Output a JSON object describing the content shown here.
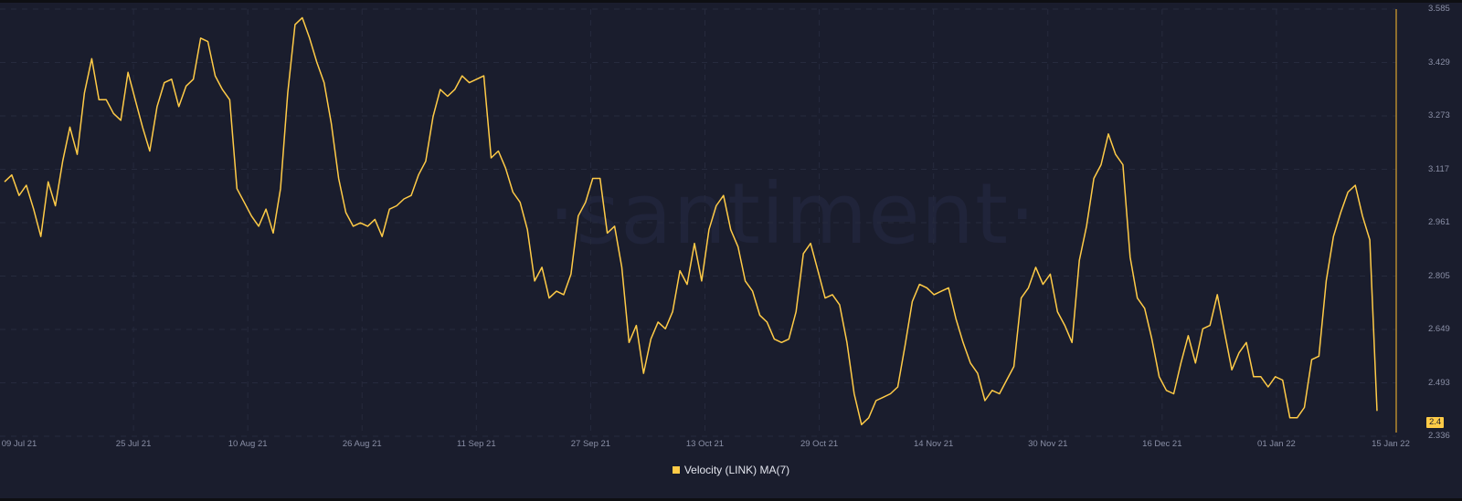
{
  "chart_data": {
    "type": "line",
    "title": "",
    "watermark": "·santiment·",
    "legend": [
      {
        "name": "Velocity (LINK) MA(7)",
        "color": "#ffcb47"
      }
    ],
    "y_ticks": [
      "3.585",
      "3.429",
      "3.273",
      "3.117",
      "2.961",
      "2.805",
      "2.649",
      "2.493",
      "2.336"
    ],
    "x_ticks": [
      "09 Jul 21",
      "25 Jul 21",
      "10 Aug 21",
      "26 Aug 21",
      "11 Sep 21",
      "27 Sep 21",
      "13 Oct 21",
      "29 Oct 21",
      "14 Nov 21",
      "30 Nov 21",
      "16 Dec 21",
      "01 Jan 22",
      "15 Jan 22"
    ],
    "ylim": [
      2.336,
      3.585
    ],
    "last_value": "2.4",
    "series": [
      {
        "name": "Velocity (LINK) MA(7)",
        "color": "#ffcb47",
        "approx_values": [
          3.08,
          3.1,
          3.04,
          3.07,
          3.0,
          2.92,
          3.08,
          3.01,
          3.14,
          3.24,
          3.16,
          3.34,
          3.44,
          3.32,
          3.32,
          3.28,
          3.26,
          3.4,
          3.32,
          3.24,
          3.17,
          3.3,
          3.37,
          3.38,
          3.3,
          3.36,
          3.38,
          3.5,
          3.49,
          3.39,
          3.35,
          3.32,
          3.06,
          3.02,
          2.98,
          2.95,
          3.0,
          2.93,
          3.06,
          3.34,
          3.54,
          3.56,
          3.5,
          3.43,
          3.37,
          3.25,
          3.09,
          2.99,
          2.95,
          2.96,
          2.95,
          2.97,
          2.92,
          3.0,
          3.01,
          3.03,
          3.04,
          3.1,
          3.14,
          3.27,
          3.35,
          3.33,
          3.35,
          3.39,
          3.37,
          3.38,
          3.39,
          3.15,
          3.17,
          3.12,
          3.05,
          3.02,
          2.94,
          2.79,
          2.83,
          2.74,
          2.76,
          2.75,
          2.81,
          2.98,
          3.02,
          3.09,
          3.09,
          2.93,
          2.95,
          2.83,
          2.61,
          2.66,
          2.52,
          2.62,
          2.67,
          2.65,
          2.7,
          2.82,
          2.78,
          2.9,
          2.79,
          2.94,
          3.01,
          3.04,
          2.94,
          2.89,
          2.79,
          2.76,
          2.69,
          2.67,
          2.62,
          2.61,
          2.62,
          2.7,
          2.87,
          2.9,
          2.82,
          2.74,
          2.75,
          2.72,
          2.61,
          2.46,
          2.37,
          2.39,
          2.44,
          2.45,
          2.46,
          2.48,
          2.6,
          2.73,
          2.78,
          2.77,
          2.75,
          2.76,
          2.77,
          2.68,
          2.61,
          2.55,
          2.52,
          2.44,
          2.47,
          2.46,
          2.5,
          2.54,
          2.74,
          2.77,
          2.83,
          2.78,
          2.81,
          2.7,
          2.66,
          2.61,
          2.85,
          2.95,
          3.09,
          3.13,
          3.22,
          3.16,
          3.13,
          2.86,
          2.74,
          2.71,
          2.62,
          2.51,
          2.47,
          2.46,
          2.55,
          2.63,
          2.55,
          2.65,
          2.66,
          2.75,
          2.64,
          2.53,
          2.58,
          2.61,
          2.51,
          2.51,
          2.48,
          2.51,
          2.5,
          2.39,
          2.39,
          2.42,
          2.56,
          2.57,
          2.79,
          2.92,
          2.99,
          3.05,
          3.07,
          2.98,
          2.91,
          2.41
        ]
      }
    ]
  }
}
